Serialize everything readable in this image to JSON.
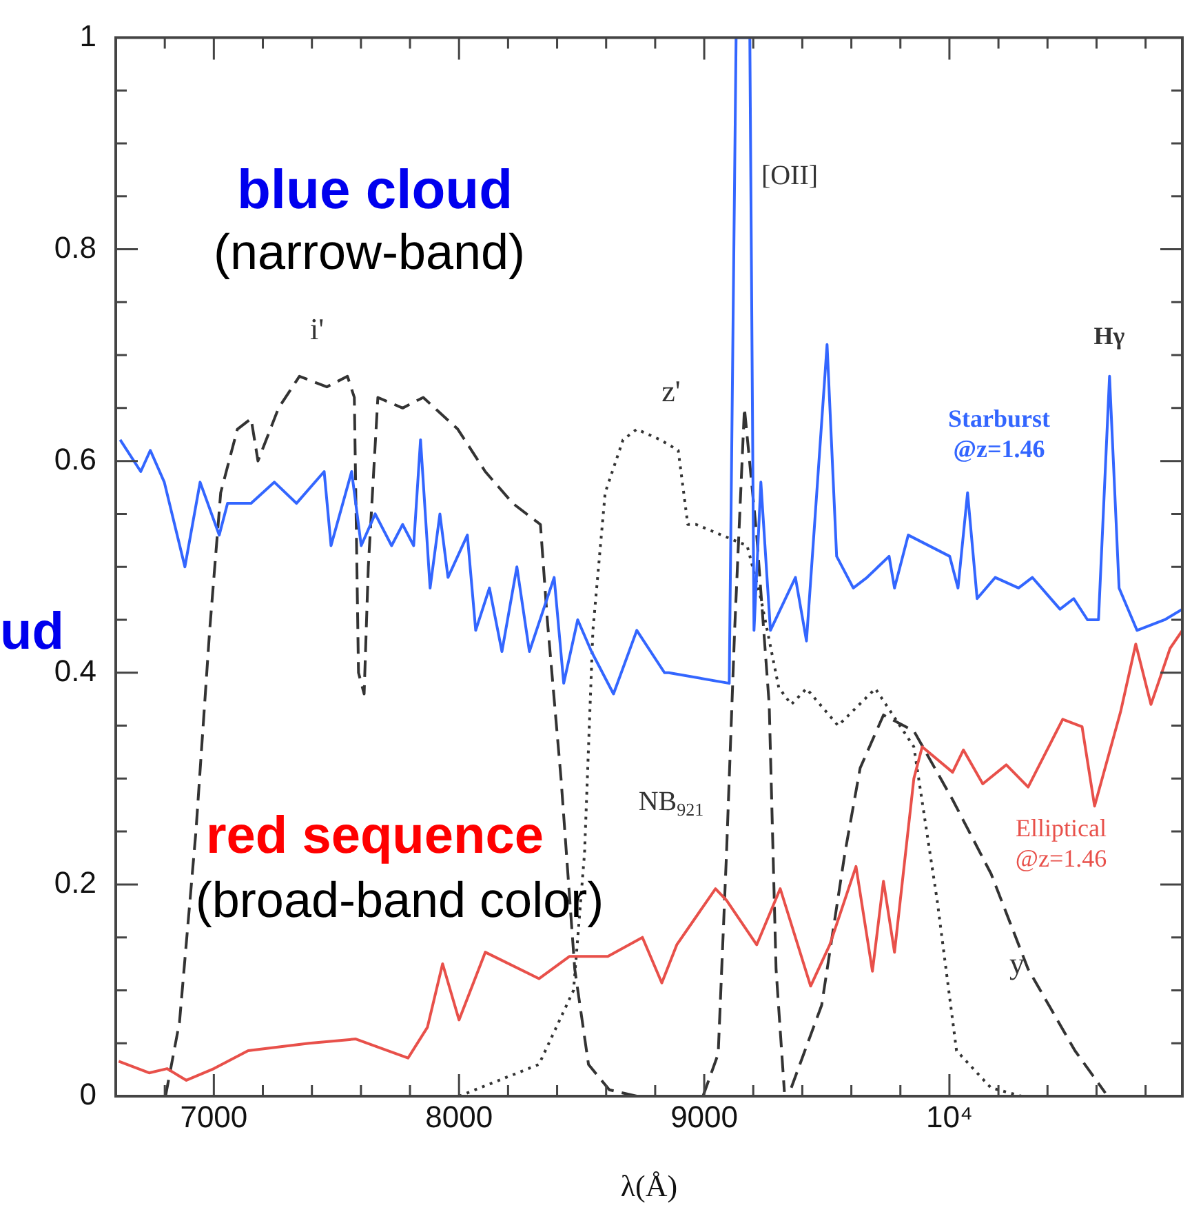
{
  "chart_data": {
    "type": "line",
    "xlabel": "λ(Å)",
    "xlim": [
      6600,
      10950
    ],
    "ylim": [
      0,
      1
    ],
    "xticks": [
      {
        "value": 6600,
        "label": null
      },
      {
        "value": 6800,
        "label": null
      },
      7000,
      {
        "value": 7200,
        "label": null
      },
      {
        "value": 7400,
        "label": null
      },
      {
        "value": 7600,
        "label": null
      },
      {
        "value": 7800,
        "label": null
      },
      8000,
      {
        "value": 8200,
        "label": null
      },
      {
        "value": 8400,
        "label": null
      },
      {
        "value": 8600,
        "label": null
      },
      {
        "value": 8800,
        "label": null
      },
      9000,
      {
        "value": 9200,
        "label": null
      },
      {
        "value": 9400,
        "label": null
      },
      {
        "value": 9600,
        "label": null
      },
      {
        "value": 9800,
        "label": null
      },
      {
        "value": 10000,
        "label": "10⁴"
      },
      {
        "value": 10200,
        "label": null
      },
      {
        "value": 10400,
        "label": null
      },
      {
        "value": 10600,
        "label": null
      },
      {
        "value": 10800,
        "label": null
      }
    ],
    "yticks": [
      0,
      {
        "value": 0.05,
        "label": null
      },
      {
        "value": 0.1,
        "label": null
      },
      {
        "value": 0.15,
        "label": null
      },
      0.2,
      {
        "value": 0.25,
        "label": null
      },
      {
        "value": 0.3,
        "label": null
      },
      {
        "value": 0.35,
        "label": null
      },
      0.4,
      {
        "value": 0.45,
        "label": null
      },
      {
        "value": 0.5,
        "label": null
      },
      {
        "value": 0.55,
        "label": null
      },
      0.6,
      {
        "value": 0.65,
        "label": null
      },
      {
        "value": 0.7,
        "label": null
      },
      {
        "value": 0.75,
        "label": null
      },
      0.8,
      {
        "value": 0.85,
        "label": null
      },
      {
        "value": 0.9,
        "label": null
      },
      {
        "value": 0.95,
        "label": null
      },
      1
    ],
    "grid": false,
    "legend": false,
    "marker": "none",
    "series": [
      {
        "name": "Starburst @z=1.46",
        "color": "#3366ff",
        "line_style": "solid",
        "x": [
          6618,
          6702,
          6741,
          6798,
          6882,
          6944,
          7022,
          7056,
          7152,
          7247,
          7337,
          7450,
          7478,
          7562,
          7601,
          7658,
          7725,
          7770,
          7815,
          7843,
          7882,
          7922,
          7955,
          8034,
          8068,
          8124,
          8175,
          8236,
          8287,
          8388,
          8427,
          8484,
          8540,
          8630,
          8725,
          8838,
          8855,
          9102,
          9130,
          9186,
          9203,
          9231,
          9270,
          9372,
          9417,
          9501,
          9540,
          9608,
          9664,
          9754,
          9776,
          9832,
          10001,
          10035,
          10074,
          10113,
          10187,
          10282,
          10338,
          10451,
          10507,
          10563,
          10608,
          10653,
          10692,
          10765,
          10878,
          10950
        ],
        "values": [
          0.62,
          0.59,
          0.61,
          0.58,
          0.5,
          0.58,
          0.53,
          0.56,
          0.56,
          0.58,
          0.56,
          0.59,
          0.52,
          0.59,
          0.52,
          0.55,
          0.52,
          0.54,
          0.52,
          0.62,
          0.48,
          0.55,
          0.49,
          0.53,
          0.44,
          0.48,
          0.42,
          0.5,
          0.42,
          0.49,
          0.39,
          0.45,
          0.42,
          0.38,
          0.44,
          0.4,
          0.4,
          0.39,
          1,
          1,
          0.44,
          0.58,
          0.44,
          0.49,
          0.43,
          0.71,
          0.51,
          0.48,
          0.49,
          0.51,
          0.48,
          0.53,
          0.51,
          0.48,
          0.57,
          0.47,
          0.49,
          0.48,
          0.49,
          0.46,
          0.47,
          0.45,
          0.45,
          0.68,
          0.48,
          0.44,
          0.45,
          0.46
        ]
      },
      {
        "name": "Elliptical @z=1.46",
        "color": "#e8504a",
        "line_style": "solid",
        "x": [
          6612,
          6736,
          6809,
          6888,
          7000,
          7140,
          7388,
          7579,
          7792,
          7871,
          7933,
          8000,
          8107,
          8326,
          8450,
          8607,
          8748,
          8827,
          8888,
          9046,
          9091,
          9214,
          9310,
          9434,
          9512,
          9619,
          9686,
          9731,
          9776,
          9855,
          9889,
          10013,
          10057,
          10136,
          10232,
          10321,
          10462,
          10541,
          10592,
          10698,
          10760,
          10822,
          10900,
          10950
        ],
        "values": [
          0.033,
          0.022,
          0.026,
          0.015,
          0.026,
          0.043,
          0.05,
          0.054,
          0.036,
          0.065,
          0.125,
          0.072,
          0.136,
          0.111,
          0.132,
          0.132,
          0.15,
          0.107,
          0.143,
          0.196,
          0.185,
          0.143,
          0.196,
          0.104,
          0.143,
          0.217,
          0.118,
          0.203,
          0.136,
          0.3,
          0.33,
          0.306,
          0.327,
          0.295,
          0.313,
          0.292,
          0.356,
          0.349,
          0.274,
          0.363,
          0.427,
          0.37,
          0.423,
          0.44
        ]
      },
      {
        "name": "i'",
        "color": "#333333",
        "line_style": "dashed",
        "x": [
          6803,
          6860,
          6927,
          6983,
          7028,
          7096,
          7152,
          7180,
          7264,
          7349,
          7461,
          7545,
          7573,
          7590,
          7613,
          7630,
          7669,
          7770,
          7854,
          7995,
          8107,
          8219,
          8332,
          8360,
          8416,
          8472,
          8528,
          8613,
          8725
        ],
        "values": [
          0,
          0.07,
          0.25,
          0.44,
          0.57,
          0.63,
          0.64,
          0.6,
          0.65,
          0.68,
          0.67,
          0.68,
          0.66,
          0.4,
          0.38,
          0.5,
          0.66,
          0.65,
          0.66,
          0.63,
          0.59,
          0.56,
          0.54,
          0.45,
          0.3,
          0.12,
          0.03,
          0.006,
          0
        ]
      },
      {
        "name": "z'",
        "color": "#333333",
        "line_style": "dotted",
        "x": [
          8000,
          8326,
          8467,
          8512,
          8546,
          8596,
          8669,
          8725,
          8821,
          8894,
          8933,
          8967,
          9175,
          9231,
          9304,
          9355,
          9417,
          9546,
          9698,
          9855,
          9950,
          10029,
          10169,
          10293
        ],
        "values": [
          0,
          0.03,
          0.1,
          0.23,
          0.44,
          0.57,
          0.62,
          0.63,
          0.62,
          0.61,
          0.54,
          0.54,
          0.52,
          0.47,
          0.386,
          0.37,
          0.385,
          0.35,
          0.385,
          0.33,
          0.185,
          0.043,
          0.008,
          0
        ]
      },
      {
        "name": "NB$_{921}$",
        "color": "#333333",
        "line_style": "dashed",
        "x": [
          8995,
          9057,
          9091,
          9124,
          9164,
          9214,
          9265,
          9293,
          9327
        ],
        "values": [
          0,
          0.04,
          0.23,
          0.44,
          0.65,
          0.53,
          0.37,
          0.12,
          0.004
        ]
      },
      {
        "name": "y",
        "color": "#333333",
        "line_style": "dashed",
        "x": [
          9355,
          9479,
          9574,
          9636,
          9731,
          9855,
          10013,
          10170,
          10321,
          10512,
          10636
        ],
        "values": [
          0.008,
          0.086,
          0.23,
          0.31,
          0.36,
          0.345,
          0.28,
          0.21,
          0.12,
          0.043,
          0.003
        ]
      }
    ],
    "annotations": [
      "blue cloud",
      "(narrow-band)",
      "red sequence",
      "(broad-band color)",
      "ud",
      "[OII]",
      "Hγ"
    ]
  }
}
